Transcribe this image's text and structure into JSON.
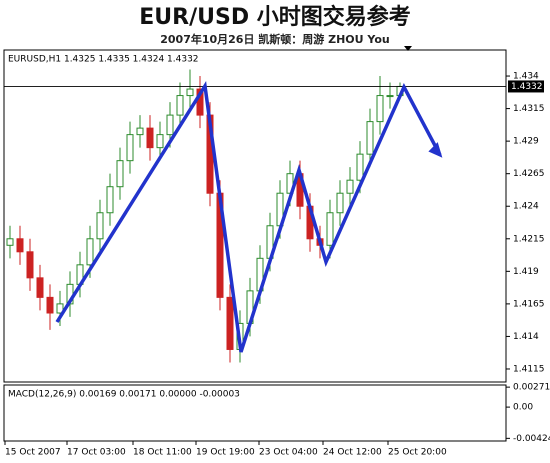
{
  "chart_data": {
    "type": "candlestick",
    "title": "EUR/USD 小时图交易参考",
    "subtitle": "2007年10月26日  凯斯顿：周游 ZHOU You",
    "symbol_header": "EURUSD,H1 1.4325 1.4335 1.4324 1.4332",
    "open": [
      1.421,
      1.4215,
      1.4205,
      1.4185,
      1.417,
      1.4158,
      1.4165,
      1.418,
      1.4195,
      1.4215,
      1.4235,
      1.4255,
      1.4275,
      1.4295,
      1.43,
      1.4285,
      1.4295,
      1.431,
      1.4325,
      1.433,
      1.431,
      1.425,
      1.417,
      1.413,
      1.415,
      1.4175,
      1.42,
      1.4225,
      1.425,
      1.4265,
      1.424,
      1.4215,
      1.421,
      1.4235,
      1.425,
      1.426,
      1.428,
      1.4305,
      1.4325,
      1.4325
    ],
    "high": [
      1.4225,
      1.4225,
      1.4215,
      1.4195,
      1.418,
      1.4175,
      1.419,
      1.4205,
      1.4225,
      1.4245,
      1.4265,
      1.4285,
      1.4305,
      1.431,
      1.431,
      1.4305,
      1.432,
      1.4335,
      1.4345,
      1.434,
      1.432,
      1.426,
      1.418,
      1.416,
      1.4185,
      1.421,
      1.4235,
      1.426,
      1.4275,
      1.4275,
      1.425,
      1.4225,
      1.4245,
      1.426,
      1.427,
      1.429,
      1.4315,
      1.434,
      1.4335,
      1.4335
    ],
    "low": [
      1.42,
      1.4195,
      1.4175,
      1.416,
      1.4145,
      1.4148,
      1.4155,
      1.417,
      1.4185,
      1.4205,
      1.4225,
      1.4245,
      1.4265,
      1.4285,
      1.4275,
      1.4275,
      1.4285,
      1.43,
      1.4315,
      1.43,
      1.424,
      1.416,
      1.412,
      1.412,
      1.414,
      1.4165,
      1.419,
      1.4215,
      1.424,
      1.423,
      1.4205,
      1.42,
      1.42,
      1.4225,
      1.424,
      1.425,
      1.427,
      1.4295,
      1.4315,
      1.4324
    ],
    "close": [
      1.4215,
      1.4205,
      1.4185,
      1.417,
      1.4158,
      1.4165,
      1.418,
      1.4195,
      1.4215,
      1.4235,
      1.4255,
      1.4275,
      1.4295,
      1.43,
      1.4285,
      1.4295,
      1.431,
      1.4325,
      1.433,
      1.431,
      1.425,
      1.417,
      1.413,
      1.415,
      1.4175,
      1.42,
      1.4225,
      1.425,
      1.4265,
      1.424,
      1.4215,
      1.421,
      1.4235,
      1.425,
      1.426,
      1.428,
      1.4305,
      1.4325,
      1.4325,
      1.4332
    ],
    "current_price": 1.4332,
    "ylim": [
      1.4105,
      1.436
    ],
    "yticks": [
      1.4115,
      1.414,
      1.4165,
      1.419,
      1.4215,
      1.424,
      1.4265,
      1.429,
      1.4315,
      1.434
    ],
    "x_labels": [
      "15 Oct 2007",
      "17 Oct 03:00",
      "18 Oct 11:00",
      "19 Oct 19:00",
      "23 Oct 04:00",
      "24 Oct 12:00",
      "25 Oct 20:00"
    ],
    "macd_header": "MACD(12,26,9) 0.00169 0.00171 0.00000 -0.00003",
    "macd_ylim": [
      -0.0046,
      0.003
    ],
    "macd_yticks": [
      {
        "value": 0.00271,
        "label": "0.00271"
      },
      {
        "value": 0,
        "label": "0.00"
      },
      {
        "value": -0.00424,
        "label": "-0.00424"
      }
    ],
    "up_color": "#2e8b2e",
    "down_color": "#cc2222"
  }
}
